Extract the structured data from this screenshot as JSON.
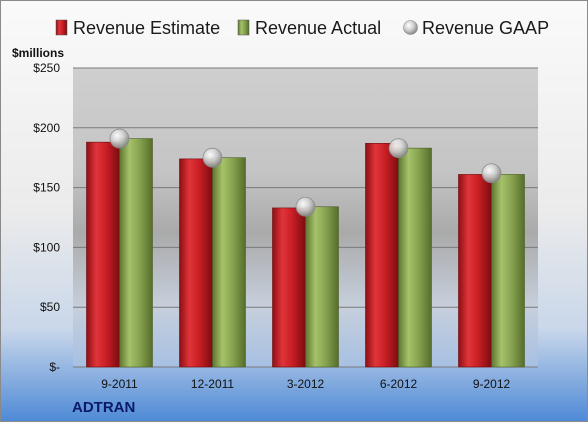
{
  "chart_data": {
    "type": "bar",
    "unit_label": "$millions",
    "company": "ADTRAN",
    "categories": [
      "9-2011",
      "12-2011",
      "3-2012",
      "6-2012",
      "9-2012"
    ],
    "series": [
      {
        "name": "Revenue Estimate",
        "kind": "bar",
        "color": "#d42027",
        "values": [
          188,
          174,
          133,
          187,
          161
        ]
      },
      {
        "name": "Revenue Actual",
        "kind": "bar",
        "color": "#8faa55",
        "values": [
          191,
          175,
          134,
          183,
          161
        ]
      },
      {
        "name": "Revenue GAAP",
        "kind": "marker",
        "color": "#c8c8c8",
        "values": [
          191,
          175,
          134,
          183,
          162
        ]
      }
    ],
    "ylim": [
      0,
      250
    ],
    "yticks": [
      0,
      50,
      100,
      150,
      200,
      250
    ],
    "ytick_labels": [
      "$-",
      "$50",
      "$100",
      "$150",
      "$200",
      "$250"
    ],
    "grid": true,
    "legend_position": "top"
  }
}
